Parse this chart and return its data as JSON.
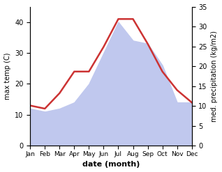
{
  "months": [
    "Jan",
    "Feb",
    "Mar",
    "Apr",
    "May",
    "Jun",
    "Jul",
    "Aug",
    "Sep",
    "Oct",
    "Nov",
    "Dec"
  ],
  "month_indices": [
    1,
    2,
    3,
    4,
    5,
    6,
    7,
    8,
    9,
    10,
    11,
    12
  ],
  "temp_max": [
    13,
    12,
    17,
    24,
    24,
    32,
    41,
    41,
    33,
    24,
    18,
    14
  ],
  "precip_left_scale": [
    12,
    11,
    12,
    14,
    20,
    30,
    40,
    34,
    33,
    26,
    14,
    14
  ],
  "temp_color": "#cc3333",
  "precip_color": "#c0c8ee",
  "title": "",
  "xlabel": "date (month)",
  "ylabel_left": "max temp (C)",
  "ylabel_right": "med. precipitation (kg/m2)",
  "ylim_left": [
    0,
    45
  ],
  "ylim_right": [
    0,
    35
  ],
  "yticks_left": [
    0,
    10,
    20,
    30,
    40
  ],
  "yticks_right": [
    0,
    5,
    10,
    15,
    20,
    25,
    30,
    35
  ],
  "bg_color": "#ffffff",
  "line_width": 1.8
}
